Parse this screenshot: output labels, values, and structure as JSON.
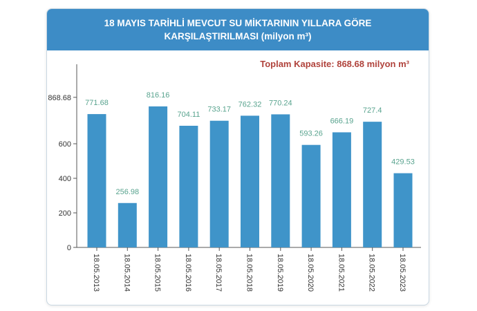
{
  "header": {
    "title": "18 MAYIS TARİHLİ MEVCUT SU MİKTARININ YILLARA GÖRE KARŞILAŞTIRILMASI (milyon m³)"
  },
  "capacity_note": "Toplam Kapasite: 868.68 milyon m³",
  "chart_data": {
    "type": "bar",
    "title": "18 MAYIS TARİHLİ MEVCUT SU MİKTARININ YILLARA GÖRE KARŞILAŞTIRILMASI (milyon m³)",
    "categories": [
      "18.05.2013",
      "18.05.2014",
      "18.05.2015",
      "18.05.2016",
      "18.05.2017",
      "18.05.2018",
      "18.05.2019",
      "18.05.2020",
      "18.05.2021",
      "18.05.2022",
      "18.05.2023"
    ],
    "values": [
      771.68,
      256.98,
      816.16,
      704.11,
      733.17,
      762.32,
      770.24,
      593.26,
      666.19,
      727.4,
      429.53
    ],
    "value_labels": [
      "771.68",
      "256.98",
      "816.16",
      "704.11",
      "733.17",
      "762.32",
      "770.24",
      "593.26",
      "666.19",
      "727.4",
      "429.53"
    ],
    "yticks": [
      0,
      200,
      400,
      600,
      868.68
    ],
    "ytick_labels": [
      "0",
      "200",
      "400",
      "600",
      "868.68"
    ],
    "ylim": [
      0,
      1060
    ],
    "xlabel": "",
    "ylabel": "",
    "grid": false,
    "bar_color": "#3f94c9",
    "label_color": "#58a38e"
  }
}
